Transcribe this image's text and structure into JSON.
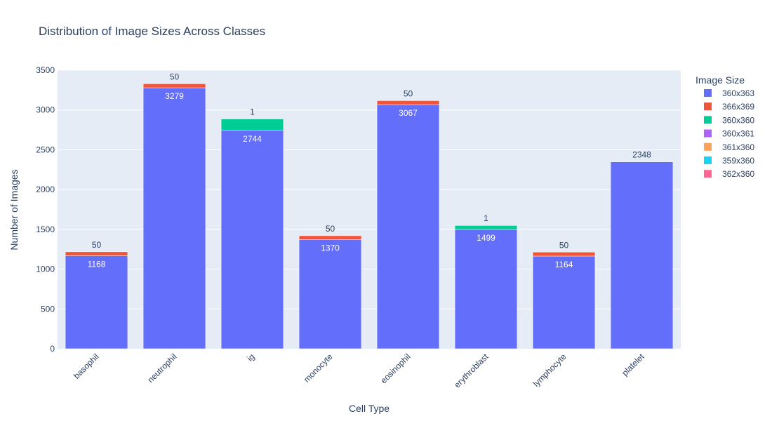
{
  "chart_data": {
    "type": "bar",
    "barmode": "stack",
    "title": "Distribution of Image Sizes Across Classes",
    "xlabel": "Cell Type",
    "ylabel": "Number of Images",
    "legend_title": "Image Size",
    "legend_position": "right",
    "grid": true,
    "ylim": [
      0,
      3500
    ],
    "yticks": [
      0,
      500,
      1000,
      1500,
      2000,
      2500,
      3000,
      3500
    ],
    "categories": [
      "basophil",
      "neutrophil",
      "ig",
      "monocyte",
      "eosinophil",
      "erythroblast",
      "lymphocyte",
      "platelet"
    ],
    "series": [
      {
        "name": "360x363",
        "color": "#636efa",
        "values": [
          1168,
          3279,
          2744,
          1370,
          3067,
          1499,
          1164,
          2348
        ]
      },
      {
        "name": "366x369",
        "color": "#EF553B",
        "values": [
          50,
          50,
          0,
          50,
          50,
          0,
          50,
          0
        ]
      },
      {
        "name": "360x360",
        "color": "#00cc96",
        "values": [
          0,
          0,
          144,
          0,
          0,
          50,
          0,
          0
        ]
      },
      {
        "name": "360x361",
        "color": "#ab63fa",
        "values": [
          0,
          0,
          1,
          0,
          0,
          1,
          0,
          0
        ]
      },
      {
        "name": "361x360",
        "color": "#FFA15A",
        "values": [
          0,
          0,
          0,
          0,
          0,
          0,
          0,
          0
        ]
      },
      {
        "name": "359x360",
        "color": "#19d3f3",
        "values": [
          0,
          0,
          0,
          0,
          0,
          0,
          0,
          0
        ]
      },
      {
        "name": "362x360",
        "color": "#FF6692",
        "values": [
          0,
          0,
          0,
          0,
          0,
          0,
          0,
          0
        ]
      }
    ],
    "data_labels": [
      {
        "category": "basophil",
        "inside": "1168",
        "top": "50"
      },
      {
        "category": "neutrophil",
        "inside": "3279",
        "top": "50"
      },
      {
        "category": "ig",
        "inside": "2744",
        "top": "1"
      },
      {
        "category": "monocyte",
        "inside": "1370",
        "top": "50"
      },
      {
        "category": "eosinophil",
        "inside": "3067",
        "top": "50"
      },
      {
        "category": "erythroblast",
        "inside": "1499",
        "top": "1"
      },
      {
        "category": "lymphocyte",
        "inside": "1164",
        "top": "50"
      },
      {
        "category": "platelet",
        "inside": "",
        "top": "2348"
      }
    ],
    "colors": {
      "plot_bg": "#e5ecf6",
      "grid": "#ffffff",
      "text": "#2a3f5f"
    }
  }
}
